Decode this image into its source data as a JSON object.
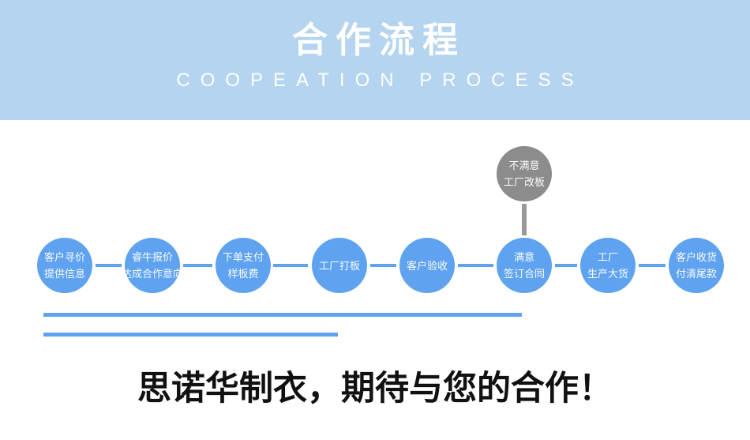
{
  "header": {
    "title": "合作流程",
    "subtitle": "COOPEATION PROCESS",
    "background_color": "#b4d4ef",
    "text_color": "#ffffff"
  },
  "flow": {
    "circle_color": "#5fa3f0",
    "alt_circle_color": "#8c8c8c",
    "connector_color": "#5fa3f0",
    "alt_connector_color": "#999999",
    "steps": [
      {
        "line1": "客户寻价",
        "line2": "提供信息"
      },
      {
        "line1": "睿牛报价",
        "line2": "达成合作意向"
      },
      {
        "line1": "下单支付",
        "line2": "样板费"
      },
      {
        "line1": "工厂打板",
        "line2": ""
      },
      {
        "line1": "客户验收",
        "line2": ""
      },
      {
        "line1": "满意",
        "line2": "签订合同"
      },
      {
        "line1": "工厂",
        "line2": "生产大货"
      },
      {
        "line1": "客户收货",
        "line2": "付清尾款"
      }
    ],
    "alt_step": {
      "line1": "不满意",
      "line2": "工厂改板"
    }
  },
  "underline_bars": {
    "color": "#5fa3f0",
    "count": 2
  },
  "tagline": "思诺华制衣，期待与您的合作！"
}
